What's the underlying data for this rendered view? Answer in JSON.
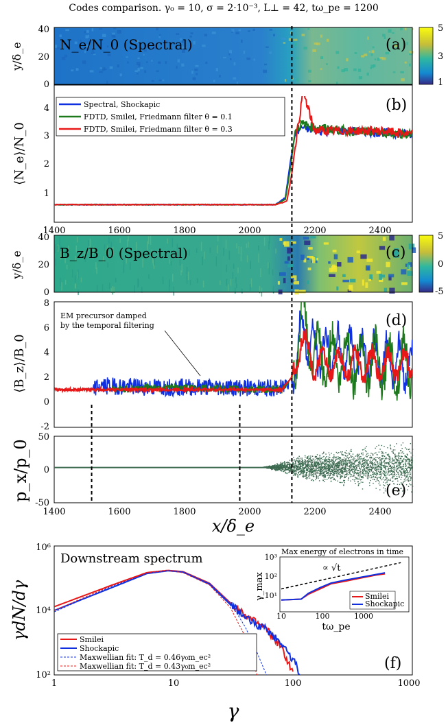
{
  "title": "Codes comparison. γ₀ = 10, σ = 2·10⁻³, L⊥ = 42, tω_pe = 1200",
  "shock_x": 2130,
  "colors": {
    "spectral": "#1030e0",
    "smilei01": "#1c7a1c",
    "smilei03": "#e81818",
    "particles": "#3c6a50",
    "fit": "#111111"
  },
  "panels": {
    "a": {
      "label": "(a)",
      "title": "N_e/N_0 (Spectral)",
      "ylabel": "y/δ_e",
      "yticks": [
        "40",
        "20",
        "0"
      ],
      "colorbar": [
        "5",
        "3",
        "1"
      ]
    },
    "b": {
      "label": "(b)",
      "ylabel": "⟨N_e⟩/N_0",
      "yticks": [
        "4",
        "3",
        "2",
        "1"
      ],
      "xticks": [
        "1400",
        "1600",
        "1800",
        "2000",
        "2200",
        "2400"
      ],
      "legend": [
        "Spectral, Shockapic",
        "FDTD, Smilei, Friedmann filter θ = 0.1",
        "FDTD, Smilei, Friedmann filter θ = 0.3"
      ]
    },
    "c": {
      "label": "(c)",
      "title": "B_z/B_0 (Spectral)",
      "ylabel": "y/δ_e",
      "yticks": [
        "40",
        "20",
        "0"
      ],
      "colorbar": [
        "5",
        "0",
        "-5"
      ]
    },
    "d": {
      "label": "(d)",
      "ylabel": "⟨B_z⟩/B_0",
      "yticks": [
        "8",
        "6",
        "4",
        "2",
        "0",
        "-2"
      ],
      "annotation": [
        "EM precursor damped",
        "by the temporal filtering"
      ]
    },
    "e": {
      "label": "(e)",
      "ylabel": "p_x/p_0",
      "yticks": [
        "50",
        "0",
        "-50"
      ],
      "xlabel": "x/δ_e",
      "xticks": [
        "1400",
        "1600",
        "1800",
        "2000",
        "2200",
        "2400"
      ]
    },
    "f": {
      "label": "(f)",
      "title": "Downstream spectrum",
      "ylabel": "γdN/dγ",
      "xlabel": "γ",
      "xticks": [
        "1",
        "10",
        "100",
        "1000"
      ],
      "yticks": [
        "10⁶",
        "10⁴",
        "10²"
      ],
      "legend": [
        "Smilei",
        "Shockapic",
        "Maxwellian fit: T_d = 0.46γ₀m_ec²",
        "Maxwellian fit: T_d = 0.43γ₀m_ec²"
      ],
      "inset": {
        "title": "Max energy of electrons in time",
        "ylabel": "γ_max",
        "xlabel": "tω_pe",
        "xticks": [
          "10",
          "100",
          "1000"
        ],
        "yticks": [
          "10³",
          "10²",
          "10¹"
        ],
        "slope_label": "∝ √t",
        "legend": [
          "Smilei",
          "Shockapic"
        ]
      }
    }
  },
  "chart_data": [
    {
      "type": "heatmap",
      "panel": "a",
      "title": "N_e/N_0 (Spectral)",
      "xlim": [
        1400,
        2500
      ],
      "ylim": [
        0,
        42
      ],
      "clim": [
        1,
        5
      ]
    },
    {
      "type": "line",
      "panel": "b",
      "xlim": [
        1400,
        2500
      ],
      "ylim": [
        0.5,
        4.4
      ],
      "series": [
        {
          "name": "Spectral, Shockapic",
          "x": [
            1400,
            2080,
            2110,
            2125,
            2140,
            2160,
            2200,
            2300,
            2400,
            2500
          ],
          "y": [
            1,
            1,
            1.2,
            2.2,
            3.0,
            3.2,
            3.1,
            3.1,
            3.05,
            3.0
          ]
        },
        {
          "name": "FDTD, Smilei, Friedmann filter θ = 0.1",
          "x": [
            1400,
            2080,
            2110,
            2125,
            2140,
            2160,
            2200,
            2300,
            2400,
            2500
          ],
          "y": [
            1,
            1,
            1.15,
            2.0,
            3.1,
            3.3,
            3.2,
            3.1,
            3.05,
            3.0
          ]
        },
        {
          "name": "FDTD, Smilei, Friedmann filter θ = 0.3",
          "x": [
            1400,
            2080,
            2115,
            2130,
            2145,
            2165,
            2200,
            2300,
            2400,
            2500
          ],
          "y": [
            1,
            1,
            1.1,
            1.9,
            3.0,
            4.2,
            3.1,
            3.1,
            3.1,
            3.0
          ]
        }
      ]
    },
    {
      "type": "heatmap",
      "panel": "c",
      "title": "B_z/B_0 (Spectral)",
      "xlim": [
        1400,
        2500
      ],
      "ylim": [
        0,
        42
      ],
      "clim": [
        -5,
        5
      ]
    },
    {
      "type": "line",
      "panel": "d",
      "xlim": [
        1400,
        2500
      ],
      "ylim": [
        -2,
        8
      ],
      "series": [
        {
          "name": "Spectral, Shockapic",
          "x": [
            1400,
            1500,
            1550,
            1700,
            1900,
            2100,
            2130,
            2160,
            2200,
            2300,
            2400,
            2500
          ],
          "y": [
            1,
            1,
            1.3,
            1.2,
            1.2,
            1.1,
            2,
            6,
            4,
            4,
            3.5,
            3
          ]
        },
        {
          "name": "FDTD, Smilei, Friedmann filter θ = 0.1",
          "x": [
            1400,
            1580,
            1700,
            1900,
            1970,
            2100,
            2130,
            2160,
            2200,
            2300,
            2400,
            2500
          ],
          "y": [
            1,
            1,
            1.2,
            1.1,
            1.05,
            1.0,
            2,
            7,
            3.5,
            3.5,
            3,
            3
          ]
        },
        {
          "name": "FDTD, Smilei, Friedmann filter θ = 0.3",
          "x": [
            1400,
            1700,
            1900,
            2100,
            2130,
            2160,
            2200,
            2300,
            2400,
            2500
          ],
          "y": [
            1,
            1,
            1,
            1,
            2,
            5,
            3,
            3,
            3,
            3
          ]
        }
      ]
    },
    {
      "type": "scatter",
      "panel": "e",
      "xlim": [
        1400,
        2500
      ],
      "ylim": [
        -50,
        50
      ],
      "series": [
        {
          "name": "",
          "x": [
            1400,
            2000,
            2100,
            2130,
            2200,
            2300,
            2400,
            2500
          ],
          "y": [
            3,
            3,
            0,
            0,
            5,
            5,
            5,
            5
          ]
        }
      ]
    },
    {
      "type": "line",
      "panel": "f",
      "title": "Downstream spectrum",
      "xlabel": "γ",
      "ylabel": "γdN/dγ",
      "xlim": [
        1,
        1000
      ],
      "ylim": [
        100,
        1000000
      ],
      "xscale": "log",
      "yscale": "log",
      "series": [
        {
          "name": "Smilei",
          "x": [
            1,
            3,
            6,
            9,
            12,
            20,
            30,
            45,
            60,
            80,
            100
          ],
          "y": [
            13000,
            60000,
            150000,
            175000,
            160000,
            70000,
            17000,
            5000,
            2500,
            700,
            110
          ]
        },
        {
          "name": "Shockapic",
          "x": [
            1,
            3,
            6,
            9,
            12,
            20,
            30,
            45,
            60,
            80,
            100,
            115
          ],
          "y": [
            10000,
            50000,
            140000,
            170000,
            155000,
            65000,
            15000,
            4500,
            2500,
            1000,
            300,
            110
          ]
        },
        {
          "name": "Maxwellian fit: T_d = 0.46γ₀m_ec²",
          "x": [
            1,
            3,
            6,
            9,
            12,
            20,
            30,
            40,
            50,
            60
          ],
          "y": [
            9000,
            55000,
            140000,
            170000,
            150000,
            70000,
            17000,
            3000,
            500,
            100
          ]
        },
        {
          "name": "Maxwellian fit: T_d = 0.43γ₀m_ec²",
          "x": [
            1,
            3,
            6,
            9,
            12,
            20,
            30,
            40,
            50
          ],
          "y": [
            10000,
            58000,
            145000,
            172000,
            148000,
            62000,
            12000,
            1500,
            100
          ]
        }
      ]
    },
    {
      "type": "line",
      "panel": "f-inset",
      "title": "Max energy of electrons in time",
      "xlabel": "tω_pe",
      "ylabel": "γ_max",
      "xlim": [
        10,
        3000
      ],
      "ylim": [
        3,
        1000
      ],
      "xscale": "log",
      "yscale": "log",
      "series": [
        {
          "name": "Smilei",
          "x": [
            10,
            25,
            35,
            60,
            100,
            200,
            400,
            800,
            1200
          ],
          "y": [
            11,
            12,
            20,
            35,
            60,
            80,
            110,
            150,
            170
          ]
        },
        {
          "name": "Shockapic",
          "x": [
            10,
            25,
            35,
            60,
            100,
            200,
            400,
            800,
            1200
          ],
          "y": [
            11,
            12,
            22,
            40,
            65,
            90,
            120,
            160,
            190
          ]
        }
      ]
    }
  ]
}
